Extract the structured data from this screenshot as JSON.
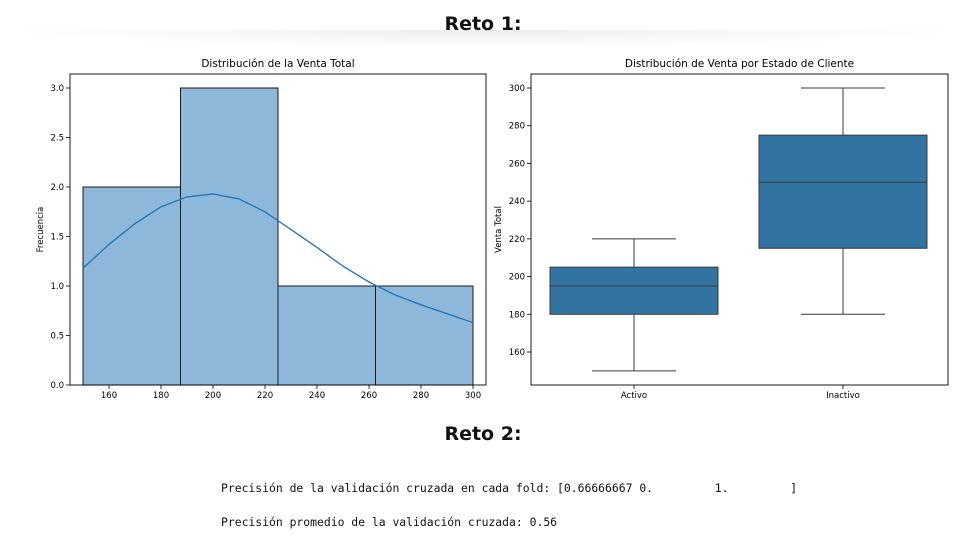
{
  "headings": {
    "reto1": "Reto 1:",
    "reto2": "Reto 2:"
  },
  "colors": {
    "hist_fill": "#8db8da",
    "kde_line": "#2878b8",
    "box_fill": "#3274a1",
    "axis": "#000000"
  },
  "chart_data": [
    {
      "type": "histogram",
      "title": "Distribución de la Venta Total",
      "xlabel": "",
      "ylabel": "Frecuencia",
      "xlim": [
        145,
        305
      ],
      "ylim": [
        0,
        3.0
      ],
      "xticks": [
        160,
        180,
        200,
        220,
        240,
        260,
        280,
        300
      ],
      "yticks": [
        "0.0",
        "0.5",
        "1.0",
        "1.5",
        "2.0",
        "2.5",
        "3.0"
      ],
      "bins": [
        {
          "x0": 150,
          "x1": 187.5,
          "count": 2
        },
        {
          "x0": 187.5,
          "x1": 225,
          "count": 3
        },
        {
          "x0": 225,
          "x1": 262.5,
          "count": 1
        },
        {
          "x0": 262.5,
          "x1": 300,
          "count": 1
        }
      ],
      "kde": {
        "x": [
          150,
          160,
          170,
          180,
          190,
          200,
          210,
          220,
          230,
          240,
          250,
          260,
          270,
          280,
          290,
          300
        ],
        "y": [
          1.18,
          1.42,
          1.63,
          1.8,
          1.9,
          1.93,
          1.88,
          1.75,
          1.57,
          1.39,
          1.2,
          1.04,
          0.91,
          0.81,
          0.72,
          0.63
        ]
      },
      "grid": false,
      "legend": "none"
    },
    {
      "type": "box",
      "title": "Distribución de Venta por Estado de Cliente",
      "xlabel": "",
      "ylabel": "Venta Total",
      "ylim": [
        143,
        307
      ],
      "yticks": [
        160,
        180,
        200,
        220,
        240,
        260,
        280,
        300
      ],
      "categories": [
        "Activo",
        "Inactivo"
      ],
      "boxes": [
        {
          "name": "Activo",
          "min": 150,
          "q1": 180,
          "median": 195,
          "q3": 205,
          "max": 220
        },
        {
          "name": "Inactivo",
          "min": 180,
          "q1": 215,
          "median": 250,
          "q3": 275,
          "max": 300
        }
      ],
      "grid": false,
      "legend": "none"
    }
  ],
  "output": {
    "line1": "Precisión de la validación cruzada en cada fold: [0.66666667 0.         1.         ]",
    "line2": "Precisión promedio de la validación cruzada: 0.56"
  }
}
